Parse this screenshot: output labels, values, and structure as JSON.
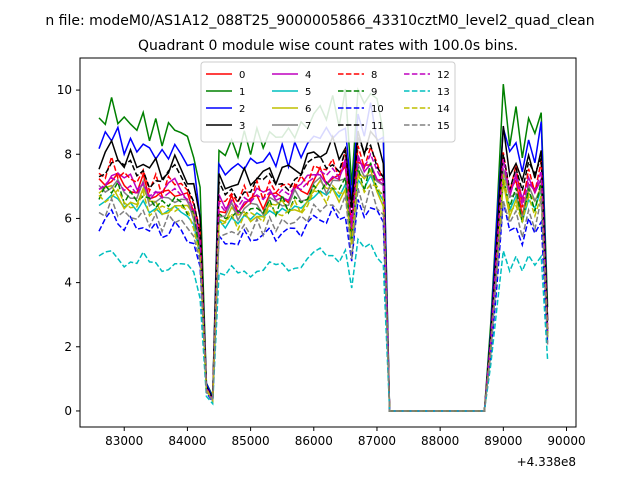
{
  "chart_data": {
    "type": "line",
    "suptitle": "n file: modeM0/AS1A12_088T25_9000005866_43310cztM0_level2_quad_clean",
    "title": "Quadrant 0 module wise count rates with 100.0s bins.",
    "xlabel": "",
    "ylabel": "",
    "offset_label": "+4.338e8",
    "xlim": [
      82300,
      90150
    ],
    "ylim": [
      -0.5,
      11.0
    ],
    "xticks": [
      83000,
      84000,
      85000,
      86000,
      87000,
      88000,
      89000,
      90000
    ],
    "yticks": [
      0,
      2,
      4,
      6,
      8,
      10
    ],
    "legend_position": "top-center",
    "base_profile": {
      "x": [
        82600,
        82700,
        82800,
        82900,
        83000,
        83100,
        83200,
        83300,
        83400,
        83500,
        83600,
        83700,
        83800,
        83900,
        84000,
        84100,
        84200,
        84300,
        84400,
        84500,
        84600,
        84700,
        84800,
        84900,
        85000,
        85100,
        85200,
        85300,
        85400,
        85500,
        85600,
        85700,
        85800,
        85900,
        86000,
        86100,
        86200,
        86300,
        86400,
        86500,
        86600,
        86700,
        86800,
        86900,
        87000,
        87100,
        87200,
        87300,
        88700,
        88800,
        88900,
        89000,
        89100,
        89200,
        89300,
        89400,
        89500,
        89600,
        89700
      ],
      "values": [
        1.0,
        1.02,
        1.05,
        1.03,
        0.99,
        1.01,
        0.97,
        1.02,
        0.96,
        0.98,
        0.95,
        0.97,
        0.99,
        0.96,
        0.94,
        0.9,
        0.75,
        0.1,
        0.05,
        0.92,
        0.88,
        0.93,
        0.9,
        0.94,
        0.92,
        0.95,
        0.93,
        0.96,
        0.94,
        0.97,
        0.95,
        0.98,
        0.97,
        1.0,
        1.02,
        1.05,
        1.03,
        1.06,
        1.02,
        1.08,
        0.8,
        1.1,
        1.06,
        1.12,
        1.05,
        1.0,
        0.0,
        0.0,
        0.0,
        0.3,
        0.7,
        1.1,
        0.95,
        1.02,
        0.9,
        1.0,
        0.96,
        1.05,
        0.35
      ]
    },
    "series": [
      {
        "name": "0",
        "color": "#ff0000",
        "dash": "solid",
        "scale": 7.0
      },
      {
        "name": "1",
        "color": "#008000",
        "dash": "solid",
        "scale": 9.0
      },
      {
        "name": "2",
        "color": "#0000ff",
        "dash": "solid",
        "scale": 8.3
      },
      {
        "name": "3",
        "color": "#000000",
        "dash": "solid",
        "scale": 7.8
      },
      {
        "name": "4",
        "color": "#bf00bf",
        "dash": "solid",
        "scale": 7.1
      },
      {
        "name": "5",
        "color": "#00bfbf",
        "dash": "solid",
        "scale": 6.4
      },
      {
        "name": "6",
        "color": "#bfbf00",
        "dash": "solid",
        "scale": 6.6
      },
      {
        "name": "7",
        "color": "#808080",
        "dash": "solid",
        "scale": 6.8
      },
      {
        "name": "8",
        "color": "#ff0000",
        "dash": "dashed",
        "scale": 7.3
      },
      {
        "name": "9",
        "color": "#008000",
        "dash": "dashed",
        "scale": 6.7
      },
      {
        "name": "10",
        "color": "#0000ff",
        "dash": "dashed",
        "scale": 5.8
      },
      {
        "name": "11",
        "color": "#000000",
        "dash": "dashed",
        "scale": 7.5
      },
      {
        "name": "12",
        "color": "#bf00bf",
        "dash": "dashed",
        "scale": 6.9
      },
      {
        "name": "13",
        "color": "#00bfbf",
        "dash": "dashed",
        "scale": 4.7
      },
      {
        "name": "14",
        "color": "#bfbf00",
        "dash": "dashed",
        "scale": 6.5
      },
      {
        "name": "15",
        "color": "#808080",
        "dash": "dashed",
        "scale": 6.1
      }
    ]
  }
}
